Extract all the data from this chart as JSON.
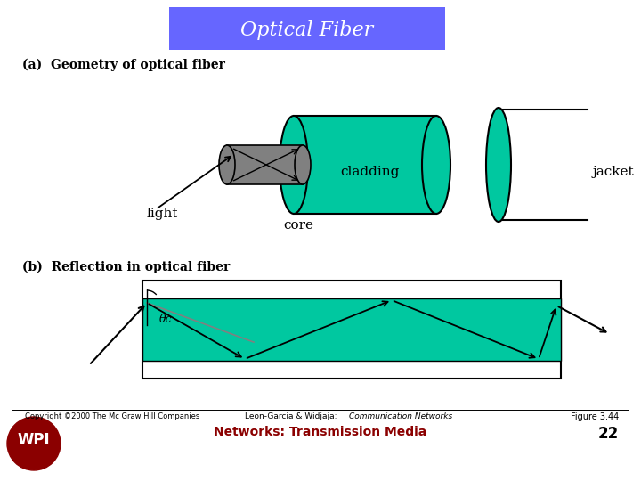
{
  "title": "Optical Fiber",
  "title_bg": "#6666ff",
  "title_text_color": "white",
  "bg_color": "white",
  "section_a_label": "(a)  Geometry of optical fiber",
  "section_b_label": "(b)  Reflection in optical fiber",
  "cladding_color": "#00c8a0",
  "core_color": "#808080",
  "label_light": "light",
  "label_cladding": "cladding",
  "label_jacket": "jacket",
  "label_core": "core",
  "copyright_text": "Copyright ©2000 The Mc Graw Hill Companies",
  "citation_text": "Leon-Garcia & Widjaja:  Communication Networks",
  "figure_text": "Figure 3.44",
  "networks_text": "Networks: Transmission Media",
  "page_num": "22",
  "theta_label": "θc",
  "main_text_color": "black",
  "dark_red": "#8b0000"
}
